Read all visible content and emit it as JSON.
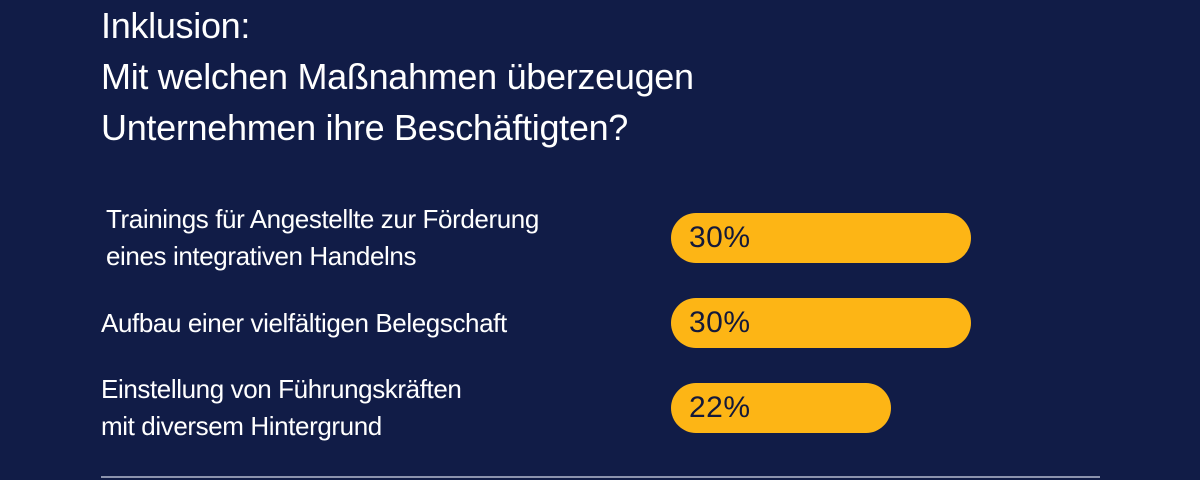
{
  "title": {
    "lines": [
      "Inklusion:",
      "Mit welchen Maßnahmen überzeugen",
      "Unternehmen ihre Beschäftigten?"
    ]
  },
  "colors": {
    "background": "#111c47",
    "bar": "#fdb515",
    "bar_text": "#14193a",
    "text": "#ffffff"
  },
  "chart_data": {
    "type": "bar",
    "orientation": "horizontal",
    "title": "Inklusion: Mit welchen Maßnahmen überzeugen Unternehmen ihre Beschäftigten?",
    "categories": [
      "Trainings für Angestellte zur Förderung eines integrativen Handelns",
      "Aufbau einer vielfältigen Belegschaft",
      "Einstellung von Führungskräften mit diversem Hintergrund"
    ],
    "values": [
      30,
      30,
      22
    ],
    "unit": "%",
    "value_labels": [
      "30%",
      "30%",
      "22%"
    ],
    "bars": [
      {
        "label_lines": [
          "Trainings für Angestellte zur Förderung",
          "eines integrativen Handelns"
        ],
        "value": 30,
        "value_label": "30%"
      },
      {
        "label_lines": [
          "Aufbau einer vielfältigen Belegschaft"
        ],
        "value": 30,
        "value_label": "30%"
      },
      {
        "label_lines": [
          "Einstellung von Führungskräften",
          "mit diversem Hintergrund"
        ],
        "value": 22,
        "value_label": "22%"
      }
    ],
    "grid": false,
    "legend": "none"
  }
}
